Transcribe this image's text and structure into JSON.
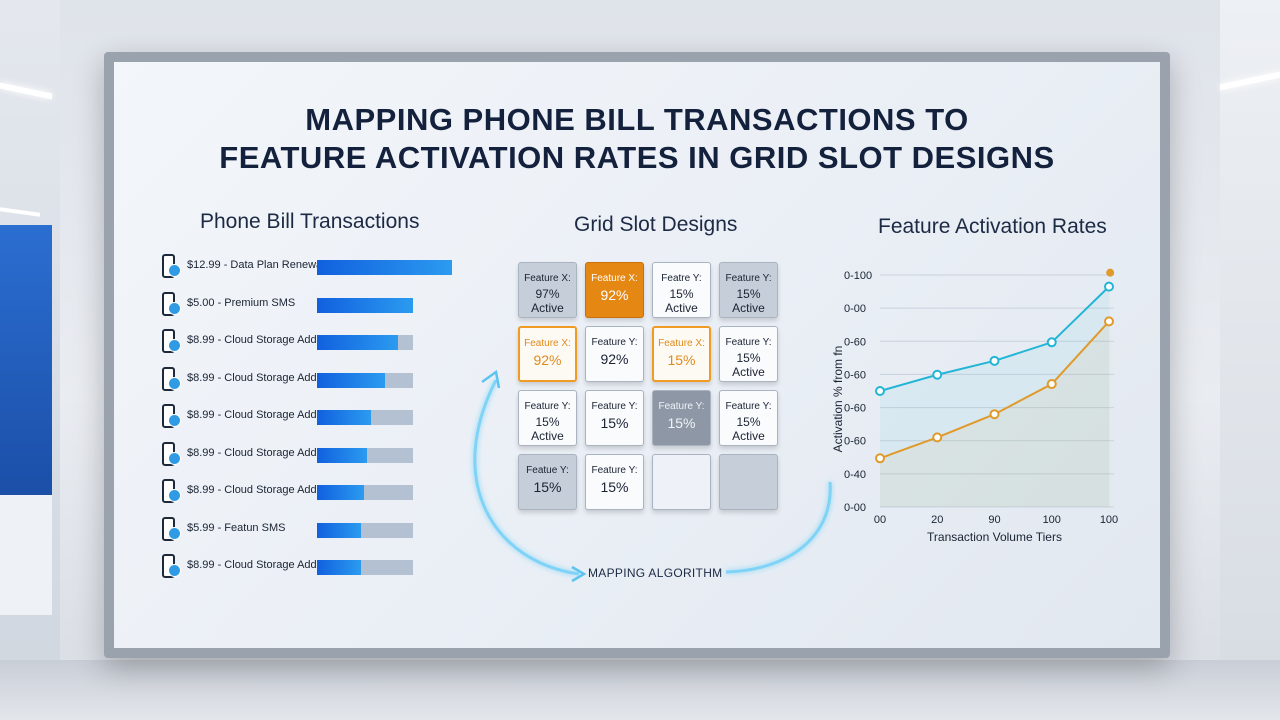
{
  "title": {
    "line1": "MAPPING PHONE BILL TRANSACTIONS TO",
    "line2": "FEATURE ACTIVATION RATES IN GRID SLOT DESIGNS"
  },
  "transactions": {
    "heading": "Phone Bill Transactions",
    "items": [
      {
        "label": "$12.99 - Data Plan Renewal",
        "fill": 1.0
      },
      {
        "label": "$5.00 - Premium SMS",
        "fill": 1.0
      },
      {
        "label": "$8.99 - Cloud Storage Add-on",
        "fill": 0.84
      },
      {
        "label": "$8.99 - Cloud Storage Add-on",
        "fill": 0.71
      },
      {
        "label": "$8.99 - Cloud Storage Add-on",
        "fill": 0.56
      },
      {
        "label": "$8.99 - Cloud Storage Add-on",
        "fill": 0.52
      },
      {
        "label": "$8.99 - Cloud Storage Add-on",
        "fill": 0.49
      },
      {
        "label": "$5.99 - Featun SMS",
        "fill": 0.46
      },
      {
        "label": "$8.99 - Cloud Storage Add-on",
        "fill": 0.46
      }
    ]
  },
  "grid": {
    "heading": "Grid Slot Designs",
    "cells": [
      {
        "l1": "Feature X:",
        "l2": "97% Active",
        "style": "gray"
      },
      {
        "l1": "Feature X:",
        "l2": "92%",
        "style": "orange"
      },
      {
        "l1": "Featre Y:",
        "l2": "15% Active",
        "style": "white"
      },
      {
        "l1": "Feature Y:",
        "l2": "15% Active",
        "style": "gray"
      },
      {
        "l1": "Feature X:",
        "l2": "92%",
        "style": "oline"
      },
      {
        "l1": "Feature Y:",
        "l2": "92%",
        "style": "white"
      },
      {
        "l1": "Feature X:",
        "l2": "15%",
        "style": "oline"
      },
      {
        "l1": "Feature Y:",
        "l2": "15% Active",
        "style": "white"
      },
      {
        "l1": "Feature Y:",
        "l2": "15% Active",
        "style": "white"
      },
      {
        "l1": "Feature Y:",
        "l2": "15%",
        "style": "white"
      },
      {
        "l1": "Feature Y:",
        "l2": "15%",
        "style": "dgray"
      },
      {
        "l1": "Feature Y:",
        "l2": "15% Active",
        "style": "white"
      },
      {
        "l1": "Featue Y:",
        "l2": "15%",
        "style": "gray"
      },
      {
        "l1": "Feature Y:",
        "l2": "15%",
        "style": "white"
      },
      {
        "l1": "",
        "l2": "",
        "style": "light"
      },
      {
        "l1": "",
        "l2": "",
        "style": "gray"
      }
    ],
    "mapping_label": "MAPPING ALGORITHM"
  },
  "chart_data": {
    "type": "line",
    "title": "Feature Activation Rates",
    "xlabel": "Transaction Volume Tiers",
    "ylabel": "Activation % from fn",
    "x_tick_labels": [
      "00",
      "20",
      "90",
      "100",
      "100"
    ],
    "y_tick_labels": [
      "0-100",
      "0-00",
      "0-60",
      "0-60",
      "0-60",
      "0-60",
      "0-40",
      "0-00"
    ],
    "colors": {
      "series_a": "#22b5d6",
      "series_b": "#e09a2c"
    },
    "series": [
      {
        "points": [
          [
            0,
            50
          ],
          [
            1,
            57
          ],
          [
            2,
            63
          ],
          [
            3,
            71
          ],
          [
            4,
            95
          ]
        ]
      },
      {
        "points": [
          [
            0,
            21
          ],
          [
            1,
            30
          ],
          [
            2,
            40
          ],
          [
            3,
            53
          ],
          [
            4,
            80
          ],
          [
            4.02,
            101
          ]
        ]
      }
    ]
  }
}
